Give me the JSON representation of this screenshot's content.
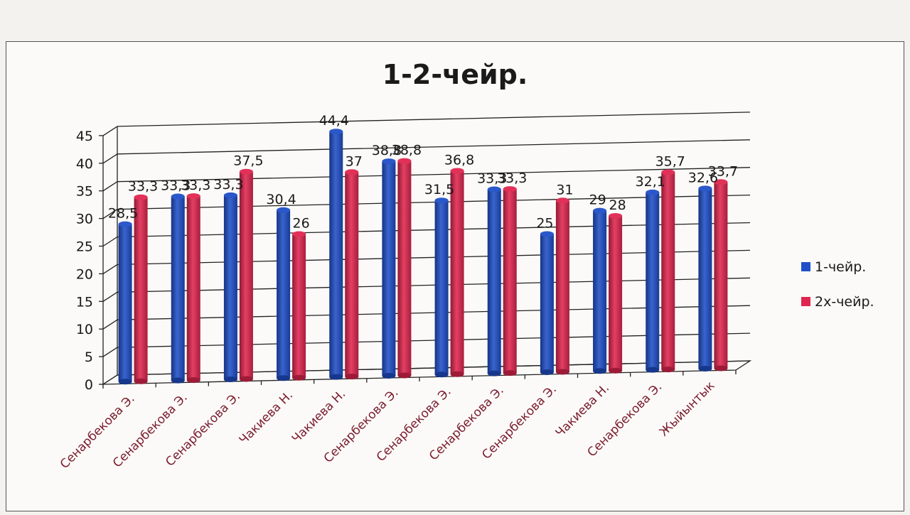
{
  "chart_data": {
    "type": "bar",
    "title": "1-2-чейр.",
    "categories": [
      "Сенарбекова Э.",
      "Сенарбекова Э.",
      "Сенарбекова Э.",
      "Чакиева Н.",
      "Чакиева Н.",
      "Сенарбекова Э.",
      "Сенарбекова Э.",
      "Сенарбекова Э.",
      "Сенарбекова Э.",
      "Чакиева Н.",
      "Сенарбекова Э.",
      "Жыйынтык"
    ],
    "series": [
      {
        "name": "1-чейр.",
        "color": "#1f4fc8",
        "values": [
          28.5,
          33.3,
          33.3,
          30.4,
          44.4,
          38.8,
          31.5,
          33.3,
          25,
          29,
          32.1,
          32.6
        ],
        "labels": [
          "28,5",
          "33,3",
          "33,3",
          "30,4",
          "44,4",
          "38,8",
          "31,5",
          "33,3",
          "25",
          "29",
          "32,1",
          "32,6"
        ]
      },
      {
        "name": "2х-чейр.",
        "color": "#e0264f",
        "values": [
          33.3,
          33.3,
          37.5,
          26,
          37,
          38.8,
          36.8,
          33.3,
          31,
          28,
          35.7,
          33.7
        ],
        "labels": [
          "33,3",
          "33,3",
          "37,5",
          "26",
          "37",
          "38,8",
          "36,8",
          "33,3",
          "31",
          "28",
          "35,7",
          "33,7"
        ]
      }
    ],
    "ylim": [
      0,
      45
    ],
    "yticks": [
      "0",
      "5",
      "10",
      "15",
      "20",
      "25",
      "30",
      "35",
      "40",
      "45"
    ],
    "grid": true,
    "legend": "right"
  }
}
